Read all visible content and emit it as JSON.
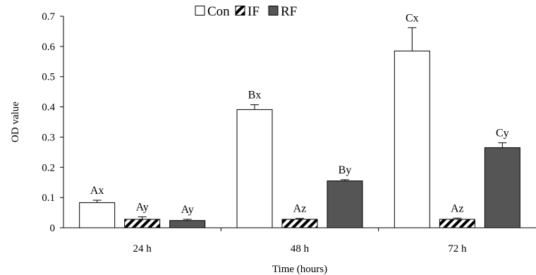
{
  "chart_data": {
    "type": "bar",
    "title": "",
    "xlabel": "Time (hours)",
    "ylabel": "OD value",
    "ylim": [
      0,
      0.7
    ],
    "yticks": [
      "0",
      "0.1",
      "0.2",
      "0.3",
      "0.4",
      "0.5",
      "0.6",
      "0.7"
    ],
    "categories": [
      "24 h",
      "48 h",
      "72 h"
    ],
    "legend_position": "top-center",
    "grid": false,
    "series": [
      {
        "name": "Con",
        "pattern": "white",
        "values": [
          0.083,
          0.391,
          0.585
        ],
        "errors": [
          0.008,
          0.016,
          0.077
        ],
        "labels": [
          "Ax",
          "Bx",
          "Cx"
        ]
      },
      {
        "name": "IF",
        "pattern": "hatch",
        "values": [
          0.028,
          0.028,
          0.028
        ],
        "errors": [
          0.008,
          0.003,
          0.004
        ],
        "labels": [
          "Ay",
          "Az",
          "Az"
        ]
      },
      {
        "name": "RF",
        "pattern": "dark",
        "values": [
          0.024,
          0.155,
          0.265
        ],
        "errors": [
          0.004,
          0.004,
          0.016
        ],
        "labels": [
          "Ay",
          "By",
          "Cy"
        ]
      }
    ],
    "colors": {
      "dark": "#555555",
      "white": "#ffffff",
      "stroke": "#000000"
    }
  }
}
